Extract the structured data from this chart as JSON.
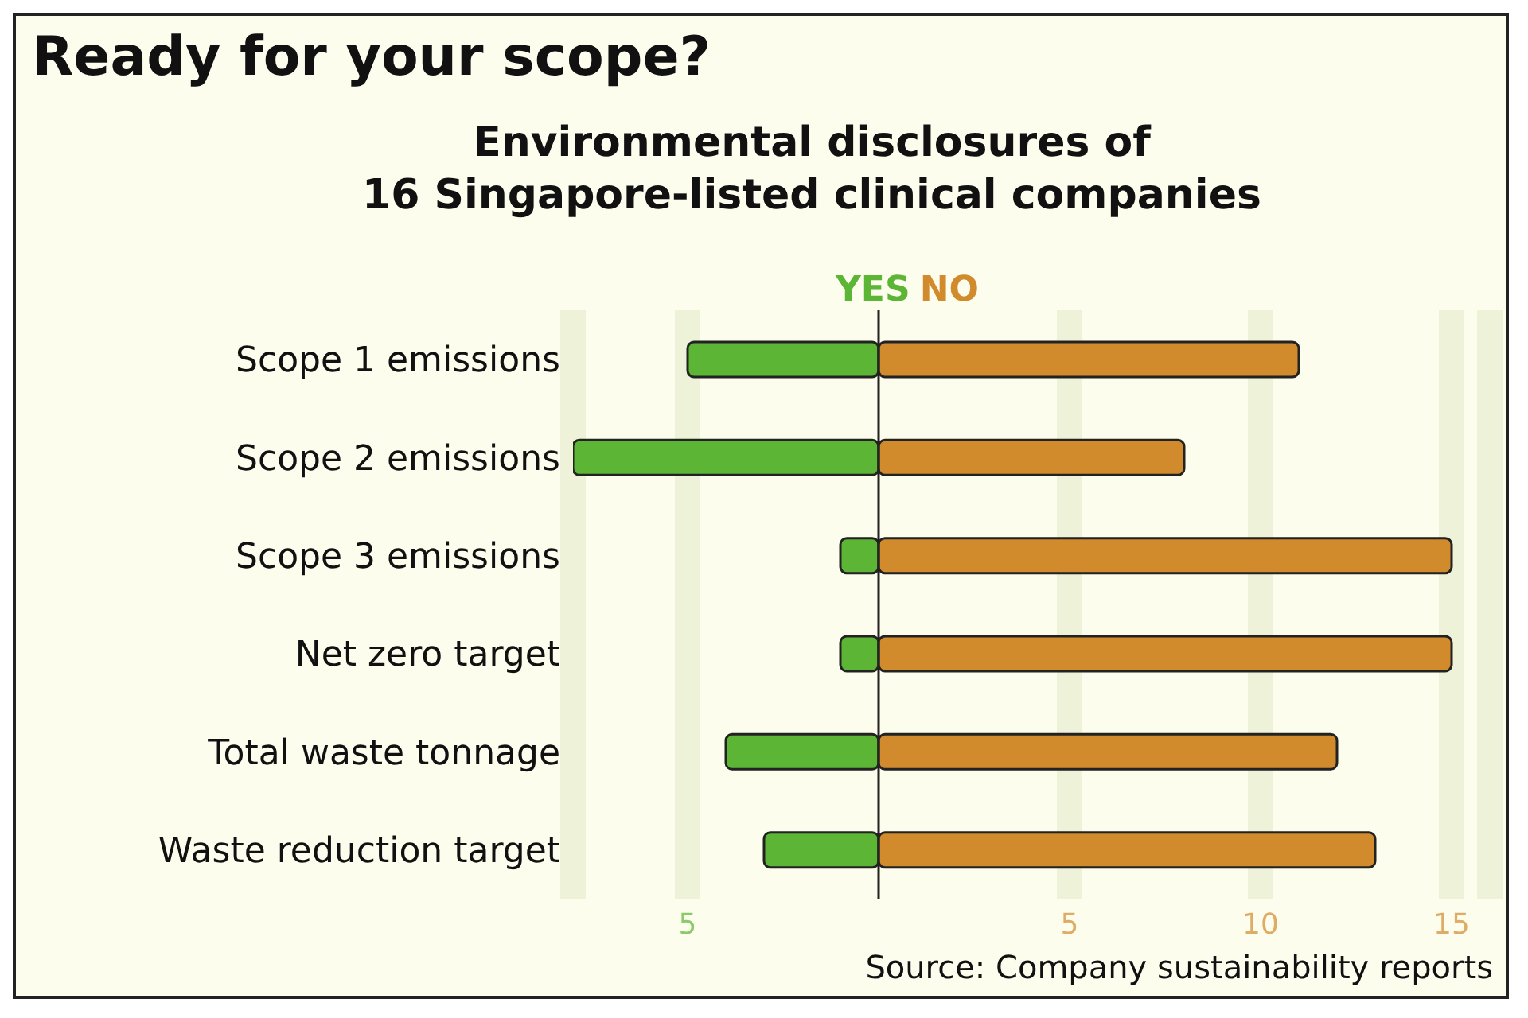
{
  "chart_data": {
    "type": "bar",
    "orientation": "horizontal",
    "stacked": true,
    "title": "Ready for your scope?",
    "subtitle": "Environmental disclosures of\n16 Singapore-listed clinical companies",
    "categories": [
      "Scope 1 emissions",
      "Scope 2 emissions",
      "Scope 3 emissions",
      "Net zero target",
      "Total waste tonnage",
      "Waste reduction target"
    ],
    "series": [
      {
        "name": "YES",
        "color": "#5cb534",
        "values": [
          -5,
          -8,
          -1,
          -1,
          -4,
          -3
        ]
      },
      {
        "name": "NO",
        "color": "#d18a2c",
        "values": [
          11,
          8,
          15,
          15,
          12,
          13
        ]
      }
    ],
    "xlim": [
      -8,
      16
    ],
    "xticks": [
      {
        "value": -5,
        "label": "5"
      },
      5,
      10,
      15
    ],
    "grid": "x",
    "legend": "top",
    "ref_lines": [
      {
        "axis": "x",
        "value": 0,
        "color": "#222222"
      }
    ],
    "annotations": [
      "Source: Company sustainability reports"
    ]
  }
}
